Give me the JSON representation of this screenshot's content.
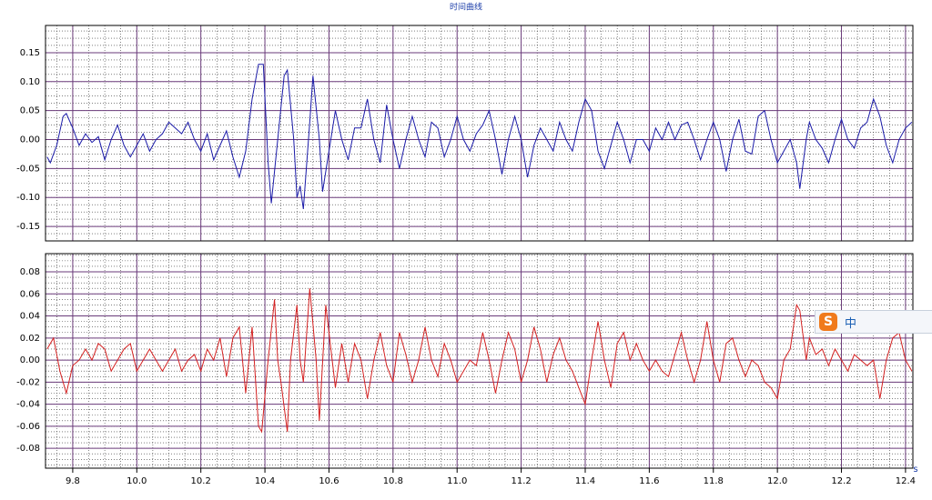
{
  "chart_data": [
    {
      "type": "line",
      "title": "时间曲线",
      "x": [
        9.72,
        9.73,
        9.75,
        9.77,
        9.78,
        9.8,
        9.82,
        9.84,
        9.86,
        9.88,
        9.9,
        9.92,
        9.94,
        9.96,
        9.98,
        10.0,
        10.02,
        10.04,
        10.06,
        10.08,
        10.1,
        10.12,
        10.14,
        10.16,
        10.18,
        10.2,
        10.22,
        10.24,
        10.26,
        10.28,
        10.3,
        10.32,
        10.34,
        10.36,
        10.38,
        10.395,
        10.41,
        10.42,
        10.44,
        10.46,
        10.47,
        10.49,
        10.5,
        10.51,
        10.52,
        10.54,
        10.55,
        10.57,
        10.58,
        10.6,
        10.62,
        10.64,
        10.66,
        10.68,
        10.7,
        10.72,
        10.74,
        10.76,
        10.78,
        10.8,
        10.82,
        10.84,
        10.86,
        10.88,
        10.9,
        10.92,
        10.94,
        10.96,
        10.98,
        11.0,
        11.02,
        11.04,
        11.06,
        11.08,
        11.1,
        11.12,
        11.14,
        11.16,
        11.18,
        11.2,
        11.22,
        11.24,
        11.26,
        11.28,
        11.3,
        11.32,
        11.34,
        11.36,
        11.38,
        11.4,
        11.42,
        11.44,
        11.46,
        11.48,
        11.5,
        11.52,
        11.54,
        11.56,
        11.58,
        11.6,
        11.62,
        11.64,
        11.66,
        11.68,
        11.7,
        11.72,
        11.74,
        11.76,
        11.78,
        11.8,
        11.82,
        11.84,
        11.86,
        11.88,
        11.9,
        11.92,
        11.94,
        11.96,
        11.98,
        12.0,
        12.02,
        12.04,
        12.06,
        12.07,
        12.09,
        12.1,
        12.12,
        12.14,
        12.16,
        12.18,
        12.2,
        12.22,
        12.24,
        12.26,
        12.28,
        12.3,
        12.32,
        12.34,
        12.36,
        12.38,
        12.4,
        12.42
      ],
      "series": [
        {
          "color": "#1a1aa8",
          "values": [
            -0.03,
            -0.04,
            -0.01,
            0.04,
            0.045,
            0.02,
            -0.01,
            0.01,
            -0.005,
            0.005,
            -0.035,
            0.0,
            0.025,
            -0.01,
            -0.03,
            -0.01,
            0.01,
            -0.02,
            0.0,
            0.01,
            0.03,
            0.02,
            0.01,
            0.03,
            0.0,
            -0.02,
            0.01,
            -0.035,
            -0.01,
            0.015,
            -0.03,
            -0.065,
            -0.02,
            0.07,
            0.13,
            0.13,
            -0.04,
            -0.11,
            0.0,
            0.11,
            0.12,
            0.0,
            -0.1,
            -0.08,
            -0.12,
            0.03,
            0.11,
            0.0,
            -0.09,
            -0.02,
            0.05,
            0.0,
            -0.035,
            0.02,
            0.02,
            0.07,
            0.0,
            -0.04,
            0.06,
            0.0,
            -0.05,
            0.0,
            0.04,
            0.0,
            -0.03,
            0.03,
            0.02,
            -0.03,
            0.0,
            0.04,
            0.0,
            -0.02,
            0.01,
            0.025,
            0.05,
            0.0,
            -0.06,
            0.0,
            0.04,
            0.0,
            -0.065,
            -0.01,
            0.02,
            0.0,
            -0.02,
            0.03,
            0.0,
            -0.02,
            0.03,
            0.07,
            0.05,
            -0.02,
            -0.05,
            -0.01,
            0.03,
            0.0,
            -0.04,
            0.0,
            0.0,
            -0.02,
            0.02,
            0.0,
            0.03,
            0.0,
            0.025,
            0.03,
            0.0,
            -0.035,
            0.0,
            0.03,
            0.0,
            -0.055,
            0.0,
            0.035,
            -0.02,
            -0.025,
            0.04,
            0.05,
            0.0,
            -0.04,
            -0.02,
            0.0,
            -0.04,
            -0.085,
            0.0,
            0.03,
            0.0,
            -0.015,
            -0.04,
            0.0,
            0.035,
            0.0,
            -0.015,
            0.02,
            0.03,
            0.07,
            0.04,
            -0.01,
            -0.04,
            0.0,
            0.02,
            0.03
          ]
        }
      ],
      "xlim": [
        9.715,
        12.423
      ],
      "ylim": [
        -0.175,
        0.197
      ],
      "yticks": [
        0.15,
        {
          "value": 0.1,
          "label": "0.10"
        },
        0.05,
        {
          "value": 0,
          "label": "0.00"
        },
        -0.05,
        {
          "value": -0.1,
          "label": "-0.10"
        },
        -0.15
      ],
      "grid": true
    },
    {
      "type": "line",
      "xlabel": "s",
      "x": [
        9.72,
        9.74,
        9.76,
        9.78,
        9.8,
        9.82,
        9.84,
        9.86,
        9.88,
        9.9,
        9.92,
        9.94,
        9.96,
        9.98,
        10.0,
        10.02,
        10.04,
        10.06,
        10.08,
        10.1,
        10.12,
        10.14,
        10.16,
        10.18,
        10.2,
        10.22,
        10.24,
        10.26,
        10.28,
        10.3,
        10.32,
        10.34,
        10.36,
        10.38,
        10.39,
        10.41,
        10.43,
        10.44,
        10.45,
        10.47,
        10.48,
        10.5,
        10.51,
        10.52,
        10.54,
        10.56,
        10.57,
        10.59,
        10.61,
        10.62,
        10.64,
        10.66,
        10.68,
        10.7,
        10.72,
        10.74,
        10.76,
        10.78,
        10.8,
        10.82,
        10.84,
        10.86,
        10.88,
        10.9,
        10.92,
        10.94,
        10.96,
        10.98,
        11.0,
        11.02,
        11.04,
        11.06,
        11.08,
        11.1,
        11.12,
        11.14,
        11.16,
        11.18,
        11.2,
        11.22,
        11.24,
        11.26,
        11.28,
        11.3,
        11.32,
        11.34,
        11.36,
        11.38,
        11.4,
        11.42,
        11.44,
        11.46,
        11.48,
        11.5,
        11.52,
        11.54,
        11.56,
        11.58,
        11.6,
        11.62,
        11.64,
        11.66,
        11.68,
        11.7,
        11.72,
        11.74,
        11.76,
        11.78,
        11.8,
        11.82,
        11.84,
        11.86,
        11.88,
        11.9,
        11.92,
        11.94,
        11.96,
        11.98,
        12.0,
        12.02,
        12.04,
        12.06,
        12.07,
        12.09,
        12.1,
        12.12,
        12.14,
        12.16,
        12.18,
        12.2,
        12.22,
        12.24,
        12.26,
        12.28,
        12.3,
        12.32,
        12.34,
        12.36,
        12.38,
        12.4,
        12.42
      ],
      "series": [
        {
          "color": "#d42020",
          "values": [
            0.01,
            0.02,
            -0.01,
            -0.03,
            -0.005,
            0.0,
            0.01,
            0.0,
            0.015,
            0.01,
            -0.01,
            0.0,
            0.01,
            0.015,
            -0.01,
            0.0,
            0.01,
            0.0,
            -0.01,
            0.0,
            0.01,
            -0.01,
            0.0,
            0.005,
            -0.01,
            0.01,
            0.0,
            0.02,
            -0.015,
            0.02,
            0.03,
            -0.03,
            0.03,
            -0.06,
            -0.065,
            0.0,
            0.055,
            0.0,
            -0.02,
            -0.065,
            0.0,
            0.05,
            0.0,
            -0.02,
            0.065,
            0.0,
            -0.055,
            0.05,
            0.0,
            -0.025,
            0.015,
            -0.02,
            0.015,
            0.0,
            -0.035,
            0.0,
            0.025,
            -0.005,
            -0.02,
            0.025,
            0.005,
            -0.02,
            0.0,
            0.03,
            0.0,
            -0.015,
            0.015,
            0.0,
            -0.02,
            -0.01,
            0.0,
            -0.005,
            0.025,
            0.0,
            -0.03,
            0.0,
            0.025,
            0.01,
            -0.02,
            0.0,
            0.03,
            0.01,
            -0.02,
            0.005,
            0.02,
            0.0,
            -0.01,
            -0.025,
            -0.04,
            0.0,
            0.035,
            0.0,
            -0.025,
            0.015,
            0.025,
            0.0,
            0.015,
            0.0,
            -0.01,
            0.0,
            -0.01,
            -0.015,
            0.005,
            0.025,
            0.0,
            -0.02,
            0.0,
            0.035,
            0.0,
            -0.02,
            0.015,
            0.02,
            0.0,
            -0.015,
            0.0,
            -0.005,
            -0.02,
            -0.025,
            -0.035,
            0.0,
            0.01,
            0.05,
            0.045,
            0.0,
            0.02,
            0.005,
            0.01,
            -0.005,
            0.01,
            0.0,
            -0.01,
            0.005,
            0.0,
            -0.005,
            0.0,
            -0.035,
            0.0,
            0.02,
            0.025,
            0.0,
            -0.01
          ]
        }
      ],
      "xlim": [
        9.715,
        12.423
      ],
      "ylim": [
        -0.098,
        0.0965
      ],
      "xticks": [
        9.8,
        {
          "value": 10,
          "label": "10.0"
        },
        10.2,
        10.4,
        10.6,
        10.8,
        {
          "value": 11,
          "label": "11.0"
        },
        11.2,
        11.4,
        11.6,
        11.8,
        {
          "value": 12,
          "label": "12.0"
        },
        12.2,
        12.4
      ],
      "yticks": [
        0.08,
        0.06,
        0.04,
        0.02,
        {
          "value": 0,
          "label": "0.00"
        },
        -0.02,
        -0.04,
        -0.06,
        -0.08
      ],
      "grid": true
    }
  ],
  "overlay": {
    "logo": "S",
    "text": "中"
  }
}
